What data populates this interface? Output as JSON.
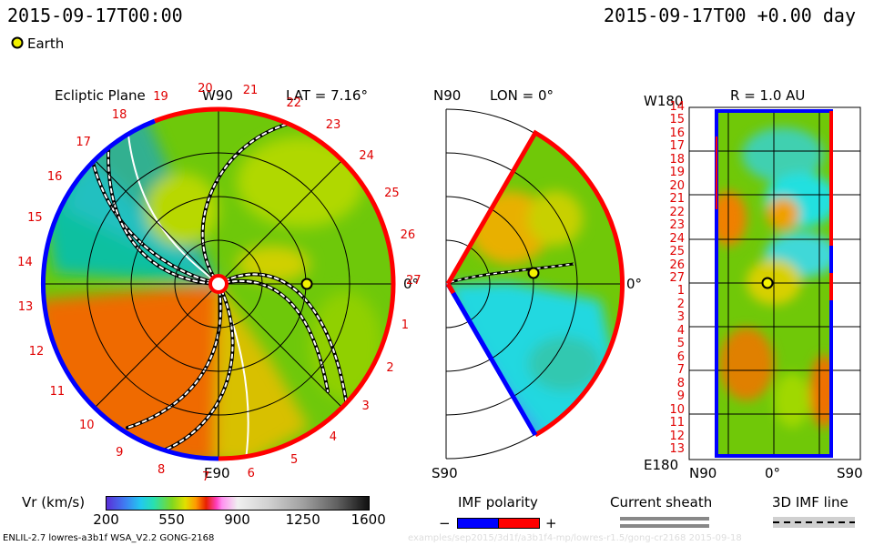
{
  "header": {
    "datetime_left": "2015-09-17T00:00",
    "datetime_right": "2015-09-17T00 +0.00 day"
  },
  "legend": {
    "earth_label": "Earth",
    "earth_color": "#f2f200"
  },
  "panels": {
    "ecliptic": {
      "title": "Ecliptic Plane",
      "top_label": "W90",
      "bottom_label": "E90",
      "right_label": "0°",
      "lat_label": "LAT = 7.16°",
      "day_labels": [
        "20",
        "21",
        "22",
        "23",
        "24",
        "25",
        "26",
        "27",
        "1",
        "2",
        "3",
        "4",
        "5",
        "6",
        "7",
        "8",
        "9",
        "10",
        "11",
        "12",
        "13",
        "14",
        "15",
        "16",
        "17",
        "18",
        "19"
      ]
    },
    "meridional": {
      "top_label": "N90",
      "bottom_label": "S90",
      "lon_label": "LON = 0°",
      "right_label": "0°"
    },
    "radial": {
      "r_label": "R = 1.0 AU",
      "top_left_label": "W180",
      "bottom_left_label": "E180",
      "bottom_n90": "N90",
      "bottom_zero": "0°",
      "bottom_s90": "S90",
      "day_labels": [
        "14",
        "15",
        "16",
        "17",
        "18",
        "19",
        "20",
        "21",
        "22",
        "23",
        "24",
        "25",
        "26",
        "27",
        "1",
        "2",
        "3",
        "4",
        "5",
        "6",
        "7",
        "8",
        "9",
        "10",
        "11",
        "12",
        "13"
      ]
    }
  },
  "colorbar": {
    "label": "Vr (km/s)",
    "ticks": [
      "200",
      "550",
      "900",
      "1250",
      "1600"
    ]
  },
  "imf": {
    "title": "IMF polarity",
    "minus": "−",
    "plus": "+",
    "negative_color": "#0000ff",
    "positive_color": "#ff0000"
  },
  "current_sheath": {
    "label": "Current sheath"
  },
  "imf_line": {
    "label": "3D IMF line"
  },
  "footer": {
    "model": "ENLIL-2.7 lowres-a3b1f WSA_V2.2 GONG-2168",
    "watermark": "examples/sep2015/3d1f/a3b1f4-mp/lowres-r1.5/gong-cr2168  2015-09-18"
  },
  "chart_data": {
    "type": "heatmap",
    "variable": "Vr (km/s)",
    "color_range": [
      200,
      1600
    ],
    "datetime": "2015-09-17T00:00",
    "offset": "+0.00 day",
    "ecliptic_latitude_deg": 7.16,
    "meridional_longitude_deg": 0,
    "radial_distance_au": 1.0,
    "earth_position": {
      "longitude_deg": 0,
      "radius_au": 1.0
    }
  }
}
